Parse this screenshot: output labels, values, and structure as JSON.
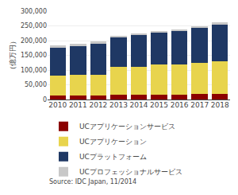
{
  "chart_data": {
    "type": "bar",
    "stacked": true,
    "categories": [
      "2010",
      "2011",
      "2012",
      "2013",
      "2014",
      "2015",
      "2016",
      "2017",
      "2018"
    ],
    "series": [
      {
        "name": "UCアプリケーションサービス",
        "color": "#8b0000",
        "values": [
          13000,
          13000,
          13000,
          15000,
          15000,
          16000,
          16000,
          18000,
          20000
        ]
      },
      {
        "name": "UCアプリケーション",
        "color": "#e8d44d",
        "values": [
          68000,
          70000,
          72000,
          96000,
          96000,
          102000,
          104000,
          107000,
          110000
        ]
      },
      {
        "name": "UCプラットフォーム",
        "color": "#1f3864",
        "values": [
          97000,
          100000,
          106000,
          100000,
          108000,
          108000,
          112000,
          118000,
          125000
        ]
      },
      {
        "name": "UCプロフェッショナルサービス",
        "color": "#c8c8c8",
        "values": [
          5000,
          5000,
          5000,
          6000,
          6000,
          7000,
          7000,
          7000,
          7000
        ]
      }
    ],
    "ylabel": "（億万円）",
    "ylim": [
      0,
      300000
    ],
    "yticks": [
      0,
      {
        "value": 50000,
        "label": "50,000"
      },
      {
        "value": 100000,
        "label": "100,000"
      },
      {
        "value": 150000,
        "label": "150,000"
      },
      {
        "value": 200000,
        "label": "200,000"
      },
      {
        "value": 250000,
        "label": "250,000"
      },
      {
        "value": 300000,
        "label": "300,000"
      }
    ],
    "grid": true,
    "legend": "bottom",
    "annotations": [
      "Source: IDC Japan, 11/2014"
    ]
  }
}
